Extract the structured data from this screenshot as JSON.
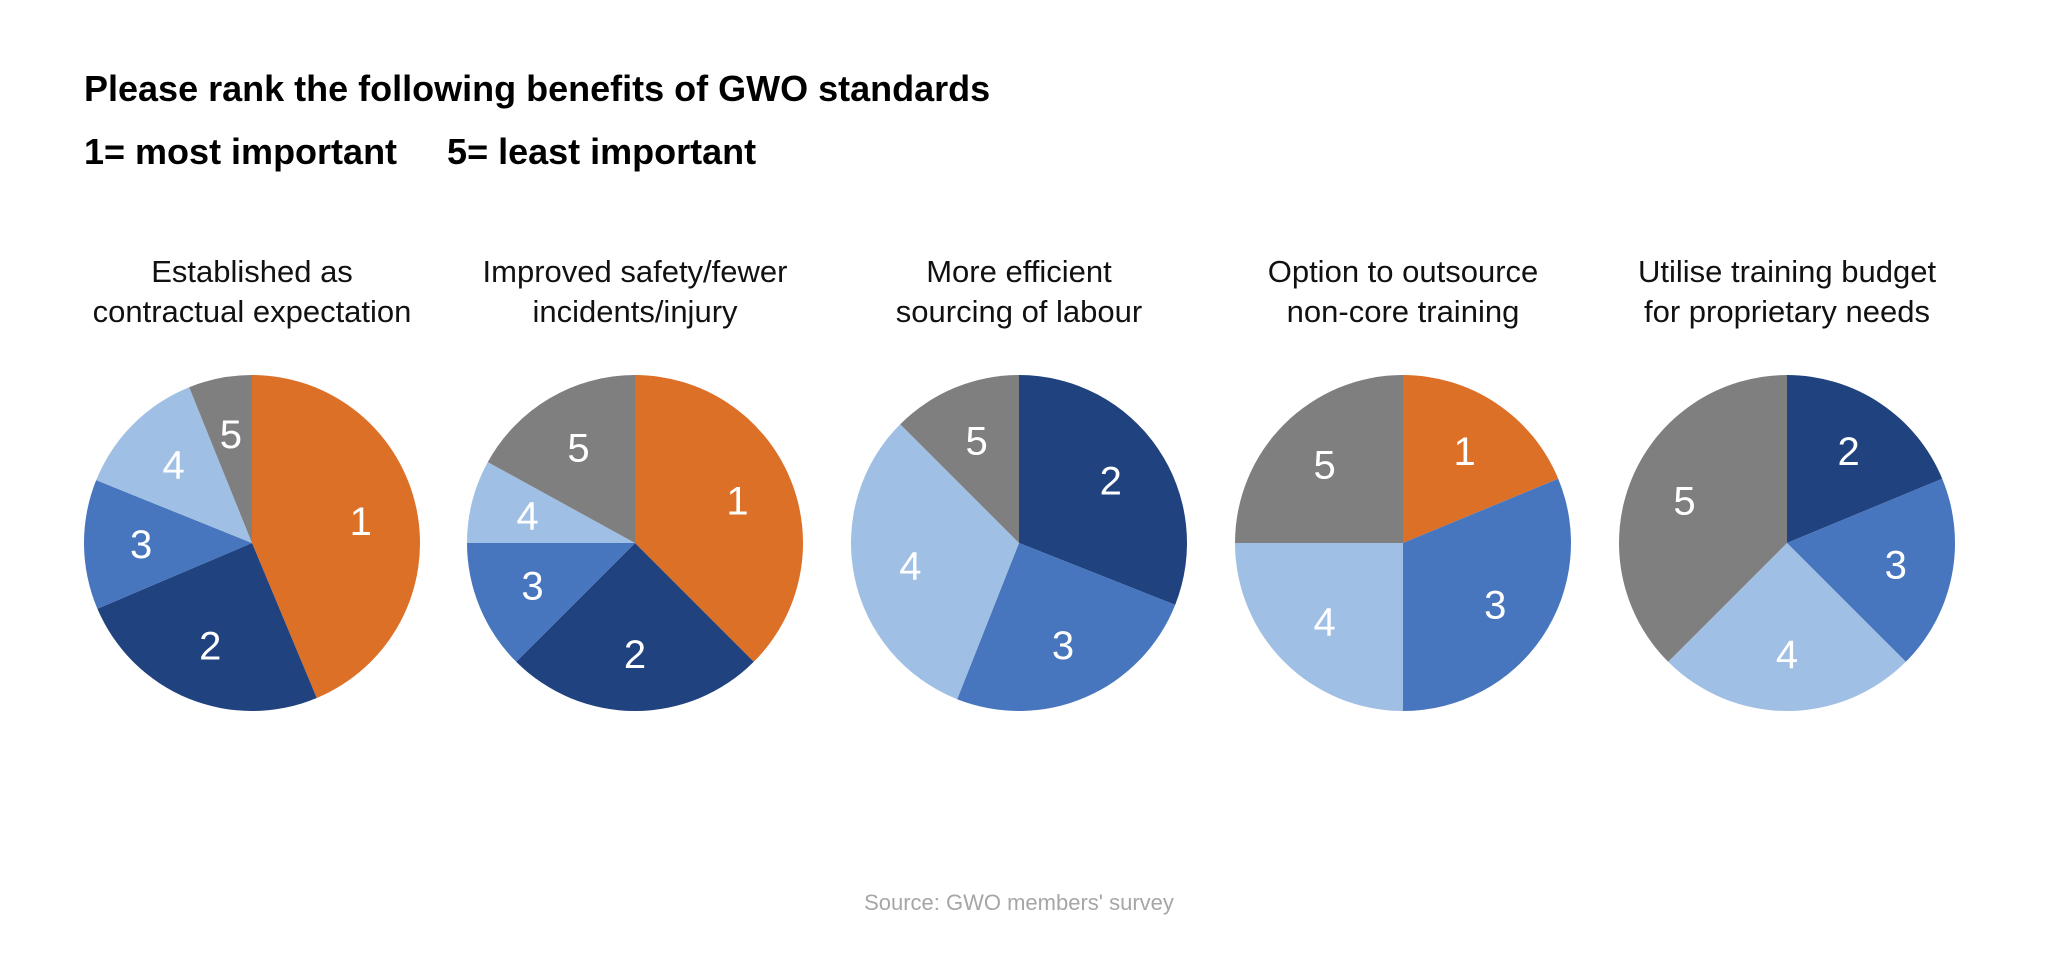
{
  "title": "Please rank the following benefits of GWO standards",
  "subtitle": "1= most important     5= least important",
  "source": "Source: GWO members' survey",
  "colors": {
    "1": "#DD7027",
    "2": "#20427F",
    "3": "#4776BE",
    "4": "#A0BFE4",
    "5": "#7F7F7F"
  },
  "chart_data": [
    {
      "type": "pie",
      "title": "Established as contractual expectation",
      "title_lines": [
        "Established as",
        "contractual expectation"
      ],
      "categories": [
        "1",
        "2",
        "3",
        "4",
        "5"
      ],
      "values": [
        43.7,
        24.9,
        12.5,
        12.8,
        6.1
      ]
    },
    {
      "type": "pie",
      "title": "Improved safety/fewer incidents/injury",
      "title_lines": [
        "Improved safety/fewer",
        "incidents/injury"
      ],
      "categories": [
        "1",
        "2",
        "3",
        "4",
        "5"
      ],
      "values": [
        37.5,
        25,
        12.5,
        8,
        17
      ]
    },
    {
      "type": "pie",
      "title": "More efficient sourcing of labour",
      "title_lines": [
        "More efficient",
        "sourcing of labour"
      ],
      "categories": [
        "2",
        "3",
        "4",
        "5"
      ],
      "values": [
        31,
        25,
        31.5,
        12.5
      ]
    },
    {
      "type": "pie",
      "title": "Option to outsource non-core training",
      "title_lines": [
        "Option to outsource",
        "non-core training"
      ],
      "categories": [
        "1",
        "3",
        "4",
        "5"
      ],
      "values": [
        18.75,
        31.25,
        25,
        25
      ]
    },
    {
      "type": "pie",
      "title": "Utilise training budget for proprietary needs",
      "title_lines": [
        "Utilise training budget",
        "for proprietary needs"
      ],
      "categories": [
        "2",
        "3",
        "4",
        "5"
      ],
      "values": [
        18.75,
        18.75,
        25,
        37.5
      ]
    }
  ]
}
